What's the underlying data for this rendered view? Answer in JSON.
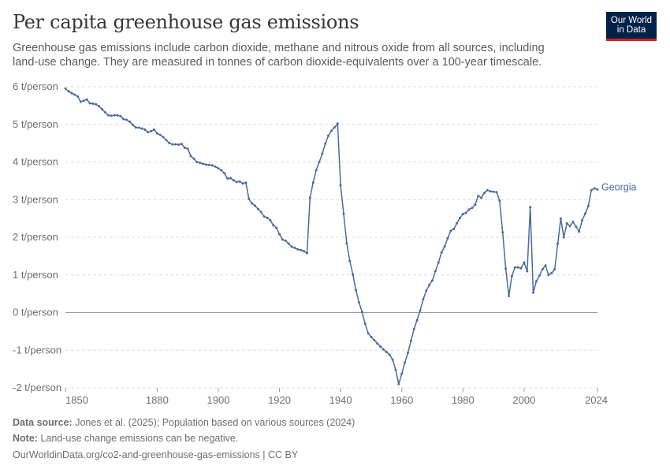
{
  "header": {
    "title": "Per capita greenhouse gas emissions",
    "subtitle": "Greenhouse gas emissions include carbon dioxide, methane and nitrous oxide from all sources, including land-use change. They are measured in tonnes of carbon dioxide-equivalents over a 100-year timescale."
  },
  "logo": {
    "line1": "Our World",
    "line2": "in Data",
    "bg_color": "#002147",
    "accent_color": "#ce261e"
  },
  "footer": {
    "source_label": "Data source:",
    "source_text": "Jones et al. (2025); Population based on various sources (2024)",
    "note_label": "Note:",
    "note_text": "Land-use change emissions can be negative.",
    "url_text": "OurWorldinData.org/co2-and-greenhouse-gas-emissions | CC BY"
  },
  "chart_data": {
    "type": "line",
    "title": "Per capita greenhouse gas emissions",
    "xlabel": "",
    "ylabel": "",
    "unit": "t/person",
    "xlim": [
      1850,
      2024
    ],
    "ylim": [
      -2,
      6
    ],
    "x_ticks": [
      1850,
      1880,
      1900,
      1920,
      1940,
      1960,
      1980,
      2000,
      2024
    ],
    "y_ticks": [
      6,
      5,
      4,
      3,
      2,
      1,
      0,
      -1,
      -2
    ],
    "y_tick_labels": [
      "6 t/person",
      "5 t/person",
      "4 t/person",
      "3 t/person",
      "2 t/person",
      "1 t/person",
      "0 t/person",
      "-1 t/person",
      "-2 t/person"
    ],
    "grid": "horizontal dashed",
    "legend": "label at line end",
    "line_color": "#4c6a9c",
    "series": [
      {
        "name": "Georgia",
        "x": [
          1850,
          1851,
          1852,
          1853,
          1854,
          1855,
          1856,
          1857,
          1858,
          1859,
          1860,
          1861,
          1862,
          1863,
          1864,
          1865,
          1866,
          1867,
          1868,
          1869,
          1870,
          1871,
          1872,
          1873,
          1874,
          1875,
          1876,
          1877,
          1878,
          1879,
          1880,
          1881,
          1882,
          1883,
          1884,
          1885,
          1886,
          1887,
          1888,
          1889,
          1890,
          1891,
          1892,
          1893,
          1894,
          1895,
          1896,
          1897,
          1898,
          1899,
          1900,
          1901,
          1902,
          1903,
          1904,
          1905,
          1906,
          1907,
          1908,
          1909,
          1910,
          1911,
          1912,
          1913,
          1914,
          1915,
          1916,
          1917,
          1918,
          1919,
          1920,
          1921,
          1922,
          1923,
          1924,
          1925,
          1926,
          1927,
          1928,
          1929,
          1930,
          1931,
          1932,
          1933,
          1934,
          1935,
          1936,
          1937,
          1938,
          1939,
          1940,
          1941,
          1942,
          1943,
          1944,
          1945,
          1946,
          1947,
          1948,
          1949,
          1950,
          1951,
          1952,
          1953,
          1954,
          1955,
          1956,
          1957,
          1958,
          1959,
          1960,
          1961,
          1962,
          1963,
          1964,
          1965,
          1966,
          1967,
          1968,
          1969,
          1970,
          1971,
          1972,
          1973,
          1974,
          1975,
          1976,
          1977,
          1978,
          1979,
          1980,
          1981,
          1982,
          1983,
          1984,
          1985,
          1986,
          1987,
          1988,
          1989,
          1990,
          1991,
          1992,
          1993,
          1994,
          1995,
          1996,
          1997,
          1998,
          1999,
          2000,
          2001,
          2002,
          2003,
          2004,
          2005,
          2006,
          2007,
          2008,
          2009,
          2010,
          2011,
          2012,
          2013,
          2014,
          2015,
          2016,
          2017,
          2018,
          2019,
          2020,
          2021,
          2022,
          2023,
          2024
        ],
        "y": [
          5.95,
          5.88,
          5.83,
          5.79,
          5.74,
          5.6,
          5.63,
          5.66,
          5.56,
          5.55,
          5.53,
          5.48,
          5.4,
          5.32,
          5.24,
          5.23,
          5.24,
          5.24,
          5.22,
          5.14,
          5.12,
          5.07,
          4.99,
          4.92,
          4.91,
          4.89,
          4.86,
          4.79,
          4.82,
          4.86,
          4.76,
          4.72,
          4.66,
          4.58,
          4.5,
          4.47,
          4.47,
          4.46,
          4.48,
          4.38,
          4.35,
          4.16,
          4.09,
          4.0,
          3.98,
          3.95,
          3.93,
          3.92,
          3.91,
          3.88,
          3.83,
          3.78,
          3.7,
          3.56,
          3.57,
          3.51,
          3.47,
          3.48,
          3.43,
          3.45,
          3.02,
          2.9,
          2.84,
          2.75,
          2.67,
          2.55,
          2.52,
          2.45,
          2.32,
          2.25,
          2.08,
          1.94,
          1.91,
          1.83,
          1.75,
          1.72,
          1.68,
          1.66,
          1.63,
          1.58,
          3.05,
          3.45,
          3.78,
          4.0,
          4.22,
          4.49,
          4.7,
          4.83,
          4.92,
          5.02,
          3.38,
          2.62,
          1.84,
          1.37,
          1.01,
          0.6,
          0.27,
          0.02,
          -0.3,
          -0.55,
          -0.65,
          -0.73,
          -0.82,
          -0.9,
          -0.98,
          -1.05,
          -1.12,
          -1.25,
          -1.52,
          -1.9,
          -1.63,
          -1.33,
          -1.07,
          -0.75,
          -0.44,
          -0.2,
          0.05,
          0.35,
          0.58,
          0.73,
          0.85,
          1.1,
          1.33,
          1.6,
          1.75,
          1.97,
          2.17,
          2.22,
          2.37,
          2.51,
          2.62,
          2.65,
          2.74,
          2.78,
          2.87,
          3.1,
          3.05,
          3.18,
          3.25,
          3.22,
          3.21,
          3.2,
          2.97,
          2.13,
          1.17,
          0.44,
          0.97,
          1.2,
          1.2,
          1.18,
          1.33,
          1.1,
          2.8,
          0.53,
          0.83,
          0.98,
          1.15,
          1.25,
          1.0,
          1.05,
          1.15,
          1.83,
          2.5,
          2.0,
          2.37,
          2.3,
          2.41,
          2.28,
          2.15,
          2.45,
          2.63,
          2.83,
          3.25,
          3.3,
          3.27
        ]
      }
    ]
  }
}
